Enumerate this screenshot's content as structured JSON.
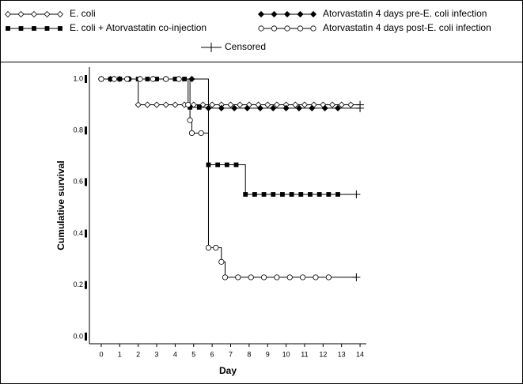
{
  "chart_data": {
    "type": "step",
    "x_label": "Day",
    "y_label": "Cumulative survival",
    "censored_label": "Censored",
    "xlim": [
      -0.64,
      14.34
    ],
    "ylim": [
      -0.028,
      1.046
    ],
    "xticks": [
      0,
      1,
      2,
      3,
      4,
      5,
      6,
      7,
      8,
      9,
      10,
      11,
      12,
      13,
      14
    ],
    "yticks": [
      {
        "value": 0,
        "label": "0.0"
      },
      0.2,
      0.4,
      0.6,
      0.8,
      {
        "value": 1,
        "label": "1.0"
      }
    ],
    "series": [
      {
        "name": "E. coli",
        "marker": "diamond-open",
        "color": "#000000",
        "x": [
          0,
          0.5,
          1,
          1.5,
          2,
          2.5,
          3,
          3.5,
          4,
          4.5,
          5,
          5.5,
          6,
          6.5,
          7,
          7.5,
          8,
          8.5,
          9,
          9.5,
          10,
          10.5,
          11,
          11.5,
          12,
          12.5,
          13,
          13.5,
          14
        ],
        "values": [
          1,
          1,
          1,
          1,
          0.9,
          0.9,
          0.9,
          0.9,
          0.9,
          0.9,
          0.9,
          0.9,
          0.9,
          0.9,
          0.9,
          0.9,
          0.9,
          0.9,
          0.9,
          0.9,
          0.9,
          0.9,
          0.9,
          0.9,
          0.9,
          0.9,
          0.9,
          0.9,
          0.9
        ]
      },
      {
        "name": "E. coli + Atorvastatin co-injection",
        "marker": "square-filled",
        "color": "#000000",
        "x": [
          0,
          0.5,
          1,
          1.5,
          2,
          2.5,
          3,
          3.5,
          4,
          4.5,
          4.8,
          5.3,
          5.8,
          6.3,
          6.8,
          7.3,
          7.8,
          8.3,
          8.8,
          9.3,
          9.8,
          10.3,
          10.8,
          11.3,
          11.8,
          12.3,
          12.8,
          13.8
        ],
        "values": [
          1,
          1,
          1,
          1,
          1,
          1,
          1,
          1,
          1,
          1,
          0.89,
          0.89,
          0.667,
          0.667,
          0.667,
          0.667,
          0.552,
          0.552,
          0.552,
          0.552,
          0.552,
          0.552,
          0.552,
          0.552,
          0.552,
          0.552,
          0.552,
          0.552
        ]
      },
      {
        "name": "Atorvastatin 4 days pre-E. coli infection",
        "marker": "diamond-filled",
        "color": "#000000",
        "x": [
          0,
          0.7,
          1.4,
          2.1,
          2.8,
          3.5,
          4.2,
          4.9,
          5.8,
          6.5,
          7.2,
          7.9,
          8.6,
          9.3,
          10,
          10.7,
          11.4,
          12.1,
          12.8,
          14
        ],
        "values": [
          1,
          1,
          1,
          1,
          1,
          1,
          1,
          1,
          0.887,
          0.887,
          0.887,
          0.887,
          0.887,
          0.887,
          0.887,
          0.887,
          0.887,
          0.887,
          0.887,
          0.887
        ]
      },
      {
        "name": "Atorvastatin 4 days post-E. coli infection",
        "marker": "circle-open",
        "color": "#000000",
        "x": [
          0,
          0.7,
          1.4,
          2.1,
          2.8,
          3.5,
          4.2,
          4.7,
          4.8,
          4.9,
          5.4,
          5.8,
          6.2,
          6.5,
          6.7,
          7.4,
          8.1,
          8.8,
          9.5,
          10.2,
          10.9,
          11.6,
          12.3,
          13.8
        ],
        "values": [
          1,
          1,
          1,
          1,
          1,
          1,
          1,
          0.9,
          0.84,
          0.79,
          0.79,
          0.345,
          0.345,
          0.29,
          0.23,
          0.23,
          0.23,
          0.23,
          0.23,
          0.23,
          0.23,
          0.23,
          0.23,
          0.23
        ]
      }
    ]
  }
}
